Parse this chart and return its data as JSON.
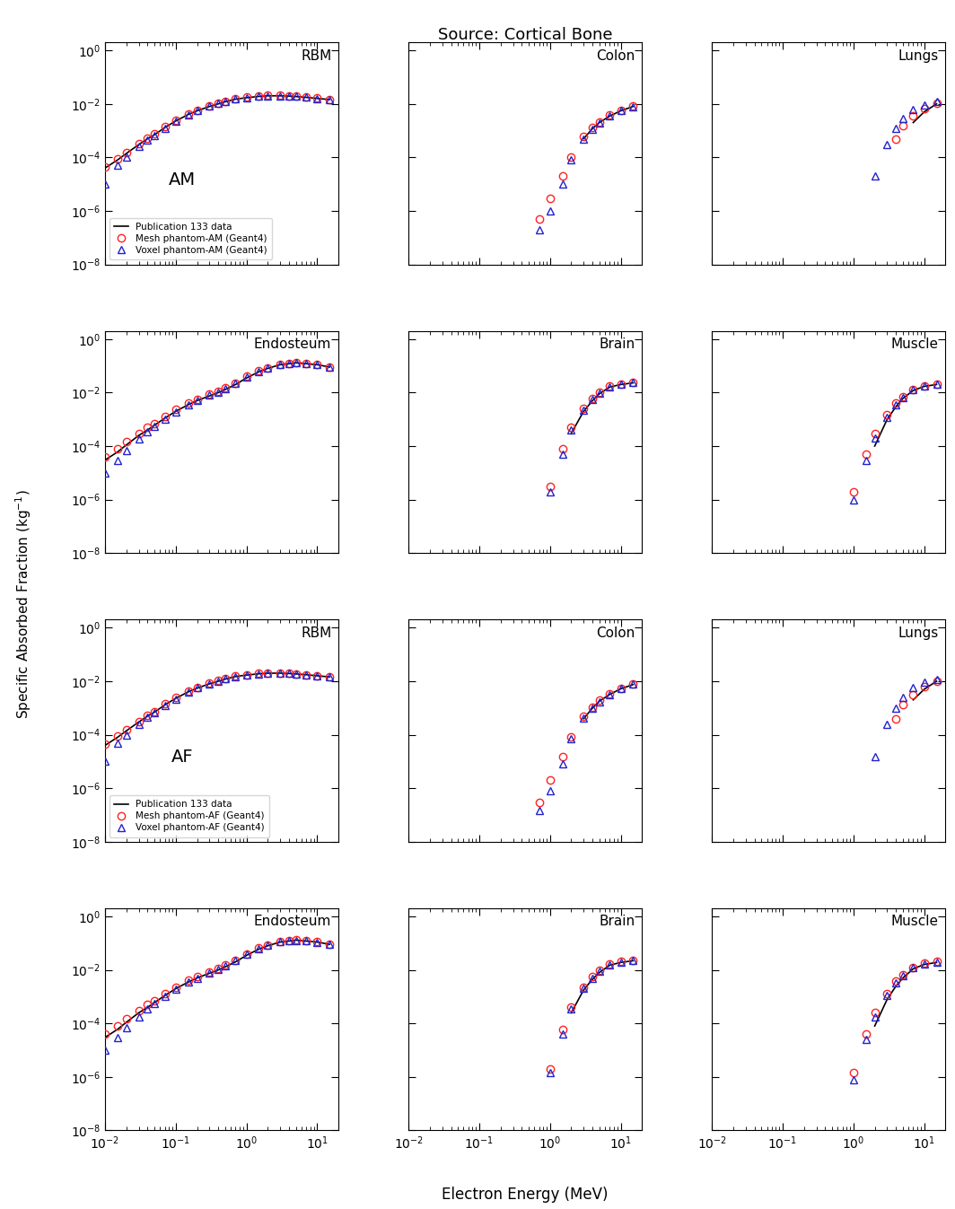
{
  "title": "Source: Cortical Bone",
  "xlabel": "Electron Energy (MeV)",
  "ylabel": "Specific Absorbed Fraction (kg-1)",
  "xlim": [
    0.01,
    20
  ],
  "ylim": [
    1e-08,
    2
  ],
  "legend_AM": [
    "Publication 133 data",
    "Mesh phantom-AM (Geant4)",
    "Voxel phantom-AM (Geant4)"
  ],
  "legend_AF": [
    "Publication 133 data",
    "Mesh phantom-AF (Geant4)",
    "Voxel phantom-AF (Geant4)"
  ],
  "line_color": "#000000",
  "mesh_color": "#ff2222",
  "voxel_color": "#2222cc",
  "energies": [
    0.01,
    0.015,
    0.02,
    0.03,
    0.04,
    0.05,
    0.07,
    0.1,
    0.15,
    0.2,
    0.3,
    0.4,
    0.5,
    0.7,
    1.0,
    1.5,
    2.0,
    3.0,
    4.0,
    5.0,
    7.0,
    10.0,
    15.0
  ],
  "AM_RBM_pub": [
    4e-05,
    8e-05,
    0.00014,
    0.0003,
    0.0005,
    0.0007,
    0.0013,
    0.0023,
    0.004,
    0.0055,
    0.008,
    0.01,
    0.012,
    0.015,
    0.017,
    0.019,
    0.02,
    0.02,
    0.0195,
    0.0188,
    0.0175,
    0.016,
    0.0145
  ],
  "AM_RBM_mesh": [
    4.5e-05,
    9e-05,
    0.00015,
    0.00032,
    0.00052,
    0.00075,
    0.0014,
    0.0024,
    0.0042,
    0.0058,
    0.0085,
    0.0105,
    0.0125,
    0.0155,
    0.0175,
    0.0195,
    0.0205,
    0.0205,
    0.02,
    0.0192,
    0.0178,
    0.0162,
    0.0148
  ],
  "AM_RBM_voxel": [
    1e-05,
    5e-05,
    0.0001,
    0.00025,
    0.00045,
    0.00065,
    0.0012,
    0.0022,
    0.004,
    0.0056,
    0.0082,
    0.0102,
    0.0122,
    0.0152,
    0.0172,
    0.0192,
    0.0202,
    0.0202,
    0.0197,
    0.019,
    0.0176,
    0.016,
    0.0146
  ],
  "AM_Colon_pub": [
    null,
    null,
    null,
    null,
    null,
    null,
    null,
    null,
    null,
    null,
    null,
    null,
    null,
    null,
    null,
    null,
    null,
    0.0005,
    0.0012,
    0.002,
    0.0035,
    0.0055,
    0.008
  ],
  "AM_Colon_mesh": [
    null,
    null,
    null,
    null,
    null,
    null,
    null,
    null,
    null,
    null,
    null,
    null,
    null,
    5e-07,
    3e-06,
    2e-05,
    0.0001,
    0.0006,
    0.0013,
    0.0021,
    0.0038,
    0.0058,
    0.0083
  ],
  "AM_Colon_voxel": [
    null,
    null,
    null,
    null,
    null,
    null,
    null,
    null,
    null,
    null,
    null,
    null,
    null,
    2e-07,
    1e-06,
    1e-05,
    8e-05,
    0.0005,
    0.0011,
    0.0019,
    0.0035,
    0.0055,
    0.008
  ],
  "AM_Lungs_pub": [
    null,
    null,
    null,
    null,
    null,
    null,
    null,
    null,
    null,
    null,
    null,
    null,
    null,
    null,
    null,
    null,
    null,
    null,
    null,
    null,
    0.002,
    0.005,
    0.01
  ],
  "AM_Lungs_mesh": [
    null,
    null,
    null,
    null,
    null,
    null,
    null,
    null,
    null,
    null,
    null,
    null,
    null,
    null,
    null,
    null,
    null,
    null,
    0.0005,
    0.0015,
    0.0035,
    0.0065,
    0.0105
  ],
  "AM_Lungs_voxel": [
    null,
    null,
    null,
    null,
    null,
    null,
    null,
    null,
    null,
    null,
    null,
    null,
    null,
    null,
    null,
    null,
    2e-05,
    0.0003,
    0.0012,
    0.0028,
    0.006,
    0.009,
    0.012
  ],
  "AM_Endosteum_pub": [
    3e-05,
    6e-05,
    0.00011,
    0.00025,
    0.0004,
    0.0006,
    0.0011,
    0.002,
    0.0035,
    0.005,
    0.0075,
    0.01,
    0.013,
    0.02,
    0.035,
    0.06,
    0.08,
    0.11,
    0.12,
    0.13,
    0.12,
    0.11,
    0.09
  ],
  "AM_Endosteum_mesh": [
    4e-05,
    8e-05,
    0.00015,
    0.0003,
    0.0005,
    0.0007,
    0.0013,
    0.0023,
    0.004,
    0.0055,
    0.0085,
    0.011,
    0.015,
    0.023,
    0.04,
    0.065,
    0.085,
    0.115,
    0.125,
    0.132,
    0.125,
    0.112,
    0.092
  ],
  "AM_Endosteum_voxel": [
    1e-05,
    3e-05,
    7e-05,
    0.00018,
    0.00035,
    0.00055,
    0.001,
    0.0019,
    0.0035,
    0.005,
    0.008,
    0.0105,
    0.014,
    0.022,
    0.038,
    0.062,
    0.082,
    0.112,
    0.122,
    0.128,
    0.122,
    0.109,
    0.09
  ],
  "AM_Brain_pub": [
    null,
    null,
    null,
    null,
    null,
    null,
    null,
    null,
    null,
    null,
    null,
    null,
    null,
    null,
    null,
    null,
    0.0003,
    0.002,
    0.005,
    0.009,
    0.016,
    0.02,
    0.023
  ],
  "AM_Brain_mesh": [
    null,
    null,
    null,
    null,
    null,
    null,
    null,
    null,
    null,
    null,
    null,
    null,
    null,
    null,
    3e-06,
    8e-05,
    0.0005,
    0.0025,
    0.006,
    0.01,
    0.017,
    0.021,
    0.024
  ],
  "AM_Brain_voxel": [
    null,
    null,
    null,
    null,
    null,
    null,
    null,
    null,
    null,
    null,
    null,
    null,
    null,
    null,
    2e-06,
    5e-05,
    0.0004,
    0.0022,
    0.0055,
    0.0095,
    0.0165,
    0.0205,
    0.0235
  ],
  "AM_Muscle_pub": [
    null,
    null,
    null,
    null,
    null,
    null,
    null,
    null,
    null,
    null,
    null,
    null,
    null,
    null,
    null,
    null,
    0.0001,
    0.001,
    0.003,
    0.006,
    0.012,
    0.017,
    0.02
  ],
  "AM_Muscle_mesh": [
    null,
    null,
    null,
    null,
    null,
    null,
    null,
    null,
    null,
    null,
    null,
    null,
    null,
    null,
    2e-06,
    5e-05,
    0.0003,
    0.0015,
    0.004,
    0.007,
    0.013,
    0.018,
    0.021
  ],
  "AM_Muscle_voxel": [
    null,
    null,
    null,
    null,
    null,
    null,
    null,
    null,
    null,
    null,
    null,
    null,
    null,
    null,
    1e-06,
    3e-05,
    0.0002,
    0.0012,
    0.0035,
    0.0065,
    0.0125,
    0.0175,
    0.0205
  ],
  "AF_RBM_pub": [
    4e-05,
    8e-05,
    0.00014,
    0.0003,
    0.0005,
    0.0007,
    0.0013,
    0.0023,
    0.004,
    0.0055,
    0.008,
    0.01,
    0.012,
    0.015,
    0.017,
    0.019,
    0.02,
    0.02,
    0.0195,
    0.0188,
    0.0175,
    0.016,
    0.0145
  ],
  "AF_RBM_mesh": [
    4.5e-05,
    9e-05,
    0.00015,
    0.00032,
    0.00052,
    0.00075,
    0.0014,
    0.0024,
    0.0042,
    0.0058,
    0.0085,
    0.0105,
    0.0125,
    0.0155,
    0.0175,
    0.0195,
    0.0205,
    0.0205,
    0.02,
    0.0192,
    0.0178,
    0.0162,
    0.0148
  ],
  "AF_RBM_voxel": [
    1e-05,
    5e-05,
    0.0001,
    0.00025,
    0.00045,
    0.00065,
    0.0012,
    0.0022,
    0.004,
    0.0056,
    0.0082,
    0.0102,
    0.0122,
    0.0152,
    0.0172,
    0.0192,
    0.0202,
    0.0202,
    0.0197,
    0.019,
    0.0176,
    0.016,
    0.0146
  ],
  "AF_Colon_pub": [
    null,
    null,
    null,
    null,
    null,
    null,
    null,
    null,
    null,
    null,
    null,
    null,
    null,
    null,
    null,
    null,
    null,
    0.0004,
    0.001,
    0.0018,
    0.0032,
    0.0052,
    0.0075
  ],
  "AF_Colon_mesh": [
    null,
    null,
    null,
    null,
    null,
    null,
    null,
    null,
    null,
    null,
    null,
    null,
    null,
    3e-07,
    2e-06,
    1.5e-05,
    8e-05,
    0.0005,
    0.0011,
    0.0019,
    0.0035,
    0.0055,
    0.008
  ],
  "AF_Colon_voxel": [
    null,
    null,
    null,
    null,
    null,
    null,
    null,
    null,
    null,
    null,
    null,
    null,
    null,
    1.5e-07,
    8e-07,
    8e-06,
    7e-05,
    0.00042,
    0.00095,
    0.0017,
    0.0032,
    0.0052,
    0.0077
  ],
  "AF_Lungs_pub": [
    null,
    null,
    null,
    null,
    null,
    null,
    null,
    null,
    null,
    null,
    null,
    null,
    null,
    null,
    null,
    null,
    null,
    null,
    null,
    null,
    0.002,
    0.005,
    0.01
  ],
  "AF_Lungs_mesh": [
    null,
    null,
    null,
    null,
    null,
    null,
    null,
    null,
    null,
    null,
    null,
    null,
    null,
    null,
    null,
    null,
    null,
    null,
    0.0004,
    0.0013,
    0.0032,
    0.0062,
    0.01
  ],
  "AF_Lungs_voxel": [
    null,
    null,
    null,
    null,
    null,
    null,
    null,
    null,
    null,
    null,
    null,
    null,
    null,
    null,
    null,
    null,
    1.5e-05,
    0.00025,
    0.001,
    0.0025,
    0.0058,
    0.009,
    0.012
  ],
  "AF_Endosteum_pub": [
    3e-05,
    6e-05,
    0.00011,
    0.00025,
    0.0004,
    0.0006,
    0.0011,
    0.002,
    0.0035,
    0.005,
    0.0075,
    0.01,
    0.013,
    0.02,
    0.035,
    0.06,
    0.08,
    0.11,
    0.12,
    0.13,
    0.12,
    0.11,
    0.09
  ],
  "AF_Endosteum_mesh": [
    4e-05,
    8e-05,
    0.00015,
    0.0003,
    0.0005,
    0.0007,
    0.0013,
    0.0023,
    0.004,
    0.0055,
    0.0085,
    0.011,
    0.015,
    0.023,
    0.04,
    0.065,
    0.085,
    0.115,
    0.125,
    0.132,
    0.125,
    0.112,
    0.092
  ],
  "AF_Endosteum_voxel": [
    1e-05,
    3e-05,
    7e-05,
    0.00018,
    0.00035,
    0.00055,
    0.001,
    0.0019,
    0.0035,
    0.005,
    0.008,
    0.0105,
    0.014,
    0.022,
    0.038,
    0.062,
    0.082,
    0.112,
    0.122,
    0.128,
    0.122,
    0.109,
    0.09
  ],
  "AF_Brain_pub": [
    null,
    null,
    null,
    null,
    null,
    null,
    null,
    null,
    null,
    null,
    null,
    null,
    null,
    null,
    null,
    null,
    0.00025,
    0.0018,
    0.0045,
    0.008,
    0.015,
    0.019,
    0.022
  ],
  "AF_Brain_mesh": [
    null,
    null,
    null,
    null,
    null,
    null,
    null,
    null,
    null,
    null,
    null,
    null,
    null,
    null,
    2e-06,
    6e-05,
    0.0004,
    0.0022,
    0.0055,
    0.0095,
    0.0165,
    0.0205,
    0.0235
  ],
  "AF_Brain_voxel": [
    null,
    null,
    null,
    null,
    null,
    null,
    null,
    null,
    null,
    null,
    null,
    null,
    null,
    null,
    1.5e-06,
    4e-05,
    0.00035,
    0.002,
    0.005,
    0.009,
    0.016,
    0.02,
    0.023
  ],
  "AF_Muscle_pub": [
    null,
    null,
    null,
    null,
    null,
    null,
    null,
    null,
    null,
    null,
    null,
    null,
    null,
    null,
    null,
    null,
    8e-05,
    0.0008,
    0.0025,
    0.005,
    0.011,
    0.016,
    0.019
  ],
  "AF_Muscle_mesh": [
    null,
    null,
    null,
    null,
    null,
    null,
    null,
    null,
    null,
    null,
    null,
    null,
    null,
    null,
    1.5e-06,
    4e-05,
    0.00025,
    0.0013,
    0.0038,
    0.0068,
    0.0125,
    0.0175,
    0.0205
  ],
  "AF_Muscle_voxel": [
    null,
    null,
    null,
    null,
    null,
    null,
    null,
    null,
    null,
    null,
    null,
    null,
    null,
    null,
    8e-07,
    2.5e-05,
    0.00018,
    0.0011,
    0.0033,
    0.0063,
    0.012,
    0.017,
    0.02
  ]
}
